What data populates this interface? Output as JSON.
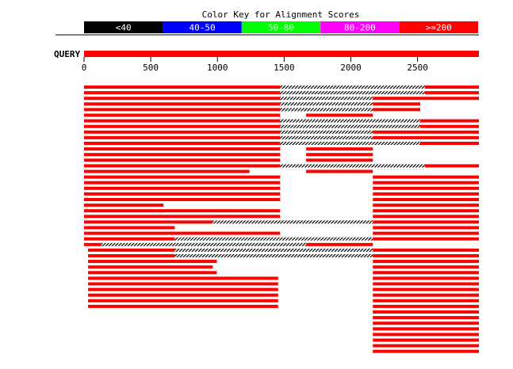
{
  "legend": {
    "title": "Color Key for Alignment Scores",
    "bins": [
      {
        "label": "<40",
        "color": "#000000",
        "text_color": "#ffffff"
      },
      {
        "label": "40-50",
        "color": "#0000ff",
        "text_color": "#ffffff"
      },
      {
        "label": "50-80",
        "color": "#00ff00",
        "text_color": "#ffffff"
      },
      {
        "label": "80-200",
        "color": "#ff00ff",
        "text_color": "#ffffff"
      },
      {
        "label": ">=200",
        "color": "#ff0000",
        "text_color": "#ffffff"
      }
    ]
  },
  "query": {
    "label": "QUERY",
    "length": 2960,
    "color": "#ff0000",
    "ticks": [
      0,
      500,
      1000,
      1500,
      2000,
      2500
    ]
  },
  "colors": {
    "hit": "#ff0000",
    "gap": "#000000",
    "rule": "#000000"
  },
  "hits": [
    {
      "segs": [
        [
          0,
          1470
        ],
        [
          2555,
          2960
        ]
      ],
      "gaps": [
        [
          1470,
          2555
        ]
      ]
    },
    {
      "segs": [
        [
          0,
          1470
        ],
        [
          2555,
          2960
        ]
      ],
      "gaps": [
        [
          1470,
          2555
        ]
      ]
    },
    {
      "segs": [
        [
          0,
          1470
        ],
        [
          2165,
          2960
        ]
      ],
      "gaps": [
        [
          1470,
          2165
        ]
      ]
    },
    {
      "segs": [
        [
          0,
          1470
        ],
        [
          2165,
          2520
        ]
      ],
      "gaps": [
        [
          1470,
          2165
        ]
      ]
    },
    {
      "segs": [
        [
          0,
          1470
        ],
        [
          2165,
          2520
        ]
      ],
      "gaps": [
        [
          1470,
          2165
        ]
      ]
    },
    {
      "segs": [
        [
          0,
          1470
        ],
        [
          1665,
          2165
        ]
      ],
      "gaps": []
    },
    {
      "segs": [
        [
          0,
          1470
        ],
        [
          2520,
          2960
        ]
      ],
      "gaps": [
        [
          1470,
          2520
        ]
      ]
    },
    {
      "segs": [
        [
          0,
          1470
        ],
        [
          2520,
          2960
        ]
      ],
      "gaps": [
        [
          1470,
          2520
        ]
      ]
    },
    {
      "segs": [
        [
          0,
          1470
        ],
        [
          2165,
          2960
        ]
      ],
      "gaps": [
        [
          1470,
          2165
        ]
      ]
    },
    {
      "segs": [
        [
          0,
          1470
        ],
        [
          2165,
          2960
        ]
      ],
      "gaps": [
        [
          1470,
          2165
        ]
      ]
    },
    {
      "segs": [
        [
          0,
          1470
        ],
        [
          2520,
          2960
        ]
      ],
      "gaps": [
        [
          1470,
          2520
        ]
      ]
    },
    {
      "segs": [
        [
          0,
          1470
        ],
        [
          1665,
          2165
        ]
      ],
      "gaps": []
    },
    {
      "segs": [
        [
          0,
          1470
        ],
        [
          1665,
          2165
        ]
      ],
      "gaps": []
    },
    {
      "segs": [
        [
          0,
          1470
        ],
        [
          1665,
          2165
        ]
      ],
      "gaps": []
    },
    {
      "segs": [
        [
          0,
          1470
        ],
        [
          2555,
          2960
        ]
      ],
      "gaps": [
        [
          1470,
          2555
        ]
      ]
    },
    {
      "segs": [
        [
          0,
          1240
        ],
        [
          1665,
          2165
        ]
      ],
      "gaps": []
    },
    {
      "segs": [
        [
          0,
          1470
        ],
        [
          2165,
          2960
        ]
      ],
      "gaps": []
    },
    {
      "segs": [
        [
          0,
          1470
        ],
        [
          2165,
          2960
        ]
      ],
      "gaps": []
    },
    {
      "segs": [
        [
          0,
          1470
        ],
        [
          2165,
          2960
        ]
      ],
      "gaps": []
    },
    {
      "segs": [
        [
          0,
          1470
        ],
        [
          2165,
          2960
        ]
      ],
      "gaps": []
    },
    {
      "segs": [
        [
          0,
          1470
        ],
        [
          2165,
          2960
        ]
      ],
      "gaps": []
    },
    {
      "segs": [
        [
          0,
          595
        ],
        [
          2165,
          2960
        ]
      ],
      "gaps": []
    },
    {
      "segs": [
        [
          0,
          1470
        ],
        [
          2165,
          2960
        ]
      ],
      "gaps": []
    },
    {
      "segs": [
        [
          0,
          1470
        ],
        [
          2165,
          2960
        ]
      ],
      "gaps": []
    },
    {
      "segs": [
        [
          0,
          965
        ],
        [
          2165,
          2960
        ]
      ],
      "gaps": [
        [
          965,
          2165
        ]
      ]
    },
    {
      "segs": [
        [
          0,
          680
        ],
        [
          2165,
          2960
        ]
      ],
      "gaps": []
    },
    {
      "segs": [
        [
          0,
          1470
        ],
        [
          2165,
          2960
        ]
      ],
      "gaps": []
    },
    {
      "segs": [
        [
          0,
          680
        ],
        [
          2165,
          2960
        ]
      ],
      "gaps": [
        [
          680,
          2165
        ]
      ]
    },
    {
      "segs": [
        [
          0,
          130
        ],
        [
          1665,
          2165
        ]
      ],
      "gaps": [
        [
          130,
          1665
        ]
      ]
    },
    {
      "segs": [
        [
          30,
          680
        ],
        [
          2165,
          2960
        ]
      ],
      "gaps": [
        [
          680,
          2165
        ]
      ]
    },
    {
      "segs": [
        [
          30,
          680
        ],
        [
          2165,
          2960
        ]
      ],
      "gaps": [
        [
          680,
          2165
        ]
      ]
    },
    {
      "segs": [
        [
          30,
          995
        ],
        [
          2165,
          2960
        ]
      ],
      "gaps": []
    },
    {
      "segs": [
        [
          30,
          965
        ],
        [
          2165,
          2960
        ]
      ],
      "gaps": []
    },
    {
      "segs": [
        [
          30,
          995
        ],
        [
          2165,
          2960
        ]
      ],
      "gaps": []
    },
    {
      "segs": [
        [
          30,
          1455
        ],
        [
          2165,
          2960
        ]
      ],
      "gaps": []
    },
    {
      "segs": [
        [
          30,
          1455
        ],
        [
          2165,
          2960
        ]
      ],
      "gaps": []
    },
    {
      "segs": [
        [
          30,
          1455
        ],
        [
          2165,
          2960
        ]
      ],
      "gaps": []
    },
    {
      "segs": [
        [
          30,
          1455
        ],
        [
          2165,
          2960
        ]
      ],
      "gaps": []
    },
    {
      "segs": [
        [
          30,
          1455
        ],
        [
          2165,
          2960
        ]
      ],
      "gaps": []
    },
    {
      "segs": [
        [
          30,
          1455
        ],
        [
          2165,
          2960
        ]
      ],
      "gaps": []
    },
    {
      "segs": [
        [
          2165,
          2960
        ]
      ],
      "gaps": []
    },
    {
      "segs": [
        [
          2165,
          2960
        ]
      ],
      "gaps": []
    },
    {
      "segs": [
        [
          2165,
          2960
        ]
      ],
      "gaps": []
    },
    {
      "segs": [
        [
          2165,
          2960
        ]
      ],
      "gaps": []
    },
    {
      "segs": [
        [
          2165,
          2960
        ]
      ],
      "gaps": []
    },
    {
      "segs": [
        [
          2165,
          2960
        ]
      ],
      "gaps": []
    },
    {
      "segs": [
        [
          2165,
          2960
        ]
      ],
      "gaps": []
    },
    {
      "segs": [
        [
          2165,
          2960
        ]
      ],
      "gaps": []
    }
  ]
}
